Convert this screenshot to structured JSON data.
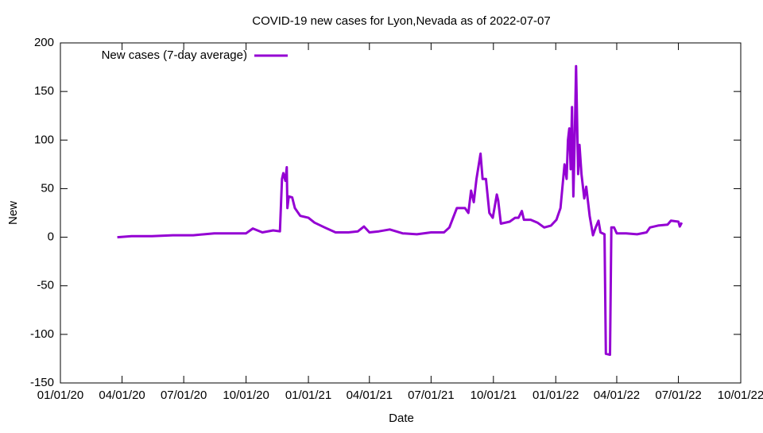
{
  "chart_data": {
    "type": "line",
    "title": "COVID-19 new cases for Lyon,Nevada as of 2022-07-07",
    "x_label": "Date",
    "y_label": "New",
    "x": [
      "03/25/20",
      "04/15/20",
      "05/15/20",
      "06/15/20",
      "07/15/20",
      "08/15/20",
      "09/15/20",
      "10/01/20",
      "10/11/20",
      "10/25/20",
      "11/10/20",
      "11/20/20",
      "11/23/20",
      "11/25/20",
      "11/28/20",
      "11/30/20",
      "12/01/20",
      "12/03/20",
      "12/08/20",
      "12/12/20",
      "12/20/20",
      "01/01/21",
      "01/10/21",
      "01/25/21",
      "02/10/21",
      "03/01/21",
      "03/15/21",
      "03/24/21",
      "04/01/21",
      "04/15/21",
      "05/01/21",
      "05/20/21",
      "06/10/21",
      "07/01/21",
      "07/20/21",
      "07/28/21",
      "08/08/21",
      "08/20/21",
      "08/25/21",
      "08/29/21",
      "09/02/21",
      "09/06/21",
      "09/12/21",
      "09/15/21",
      "09/20/21",
      "09/25/21",
      "09/30/21",
      "10/06/21",
      "10/08/21",
      "10/12/21",
      "10/25/21",
      "11/02/21",
      "11/07/21",
      "11/12/21",
      "11/15/21",
      "11/25/21",
      "12/05/21",
      "12/15/21",
      "12/25/21",
      "01/02/22",
      "01/08/22",
      "01/14/22",
      "01/17/22",
      "01/19/22",
      "01/21/22",
      "01/23/22",
      "01/25/22",
      "01/27/22",
      "01/29/22",
      "01/31/22",
      "02/03/22",
      "02/05/22",
      "02/08/22",
      "02/12/22",
      "02/15/22",
      "02/20/22",
      "02/25/22",
      "03/01/22",
      "03/05/22",
      "03/08/22",
      "03/14/22",
      "03/16/22",
      "03/22/22",
      "03/24/22",
      "03/28/22",
      "04/01/22",
      "04/15/22",
      "05/01/22",
      "05/15/22",
      "05/20/22",
      "06/01/22",
      "06/15/22",
      "06/20/22",
      "07/01/22",
      "07/03/22",
      "07/06/22"
    ],
    "series": [
      {
        "name": "New cases (7-day average)",
        "color": "#9400d3",
        "values": [
          0,
          1,
          1,
          2,
          2,
          4,
          4,
          4,
          9,
          5,
          7,
          6,
          60,
          66,
          58,
          72,
          30,
          42,
          41,
          30,
          22,
          20,
          15,
          10,
          5,
          5,
          6,
          11,
          5,
          6,
          8,
          4,
          3,
          5,
          5,
          10,
          30,
          30,
          25,
          48,
          36,
          60,
          86,
          60,
          60,
          25,
          20,
          44,
          38,
          14,
          16,
          20,
          20,
          27,
          18,
          18,
          15,
          10,
          12,
          18,
          30,
          75,
          60,
          100,
          112,
          70,
          134,
          42,
          100,
          176,
          65,
          95,
          65,
          40,
          52,
          22,
          2,
          10,
          17,
          5,
          3,
          -120,
          -121,
          10,
          10,
          4,
          4,
          3,
          5,
          10,
          12,
          13,
          17,
          16,
          11,
          15
        ]
      }
    ],
    "xlim": [
      "01/01/20",
      "10/01/22"
    ],
    "xticks": [
      "01/01/20",
      "04/01/20",
      "07/01/20",
      "10/01/20",
      "01/01/21",
      "04/01/21",
      "07/01/21",
      "10/01/21",
      "01/01/22",
      "04/01/22",
      "07/01/22",
      "10/01/22"
    ],
    "ylim": [
      -150,
      200
    ],
    "yticks": [
      -150,
      -100,
      -50,
      0,
      50,
      100,
      150,
      200
    ],
    "legend": "top-left"
  }
}
